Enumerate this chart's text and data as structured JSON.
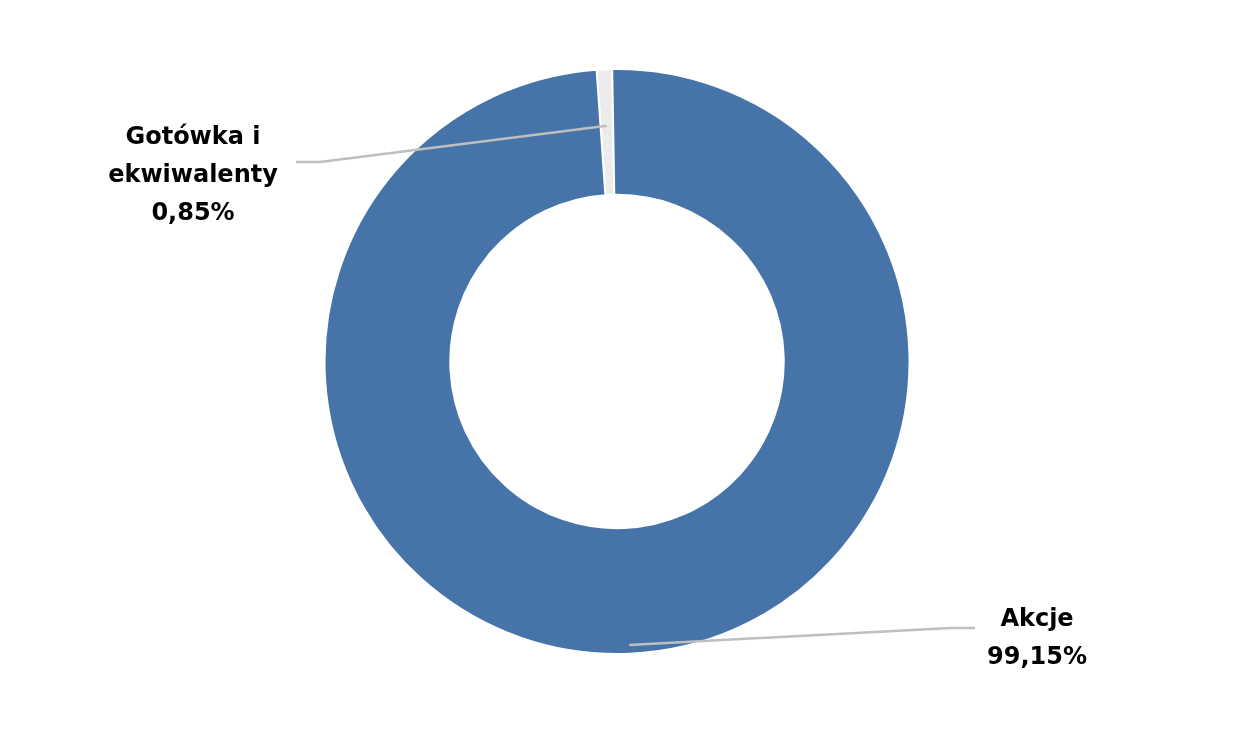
{
  "chart_data": {
    "type": "donut",
    "categories": [
      "Gotówka i ekwiwalenty",
      "Akcje"
    ],
    "values": [
      0.85,
      99.15
    ],
    "colors": [
      "#ececec",
      "#4674a8"
    ],
    "value_labels": [
      "0,85%",
      "99,15%"
    ],
    "legend": false
  }
}
